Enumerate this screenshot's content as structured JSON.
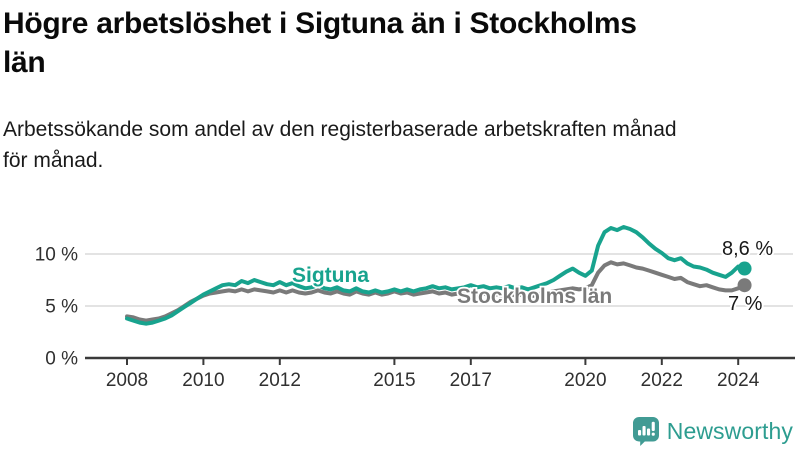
{
  "header": {
    "title": "Högre arbetslöshet i Sigtuna än i Stockholms län",
    "title_lines": [
      "Högre arbetslöshet i Sigtuna än i Stockholms",
      "län"
    ],
    "subtitle": "Arbetssökande som andel av den registerbaserade arbetskraften månad för månad.",
    "subtitle_lines": [
      "Arbetssökande som andel av den registerbaserade arbetskraften månad",
      "för månad."
    ]
  },
  "chart_data": {
    "type": "line",
    "title": "Högre arbetslöshet i Sigtuna än i Stockholms län",
    "xlabel": "",
    "ylabel": "%",
    "unit": "%",
    "grid": true,
    "xlim": [
      2007.9,
      2024.7
    ],
    "ylim": [
      0,
      13.5
    ],
    "x_start": 2008,
    "x_step_years": 0.1666667,
    "x_ticks": [
      "2008",
      "2010",
      "2012",
      "2015",
      "2017",
      "2020",
      "2022",
      "2024"
    ],
    "x_tick_years": [
      2008,
      2010,
      2012,
      2015,
      2017,
      2020,
      2022,
      2024
    ],
    "y_ticks": [
      {
        "value": 0,
        "label": "0 %"
      },
      {
        "value": 5,
        "label": "5 %"
      },
      {
        "value": 10,
        "label": "10 %"
      }
    ],
    "legend_position": "inline-labels",
    "series": [
      {
        "name": "Stockholms län",
        "color": "#7a7a7a",
        "end_label": "7 %",
        "end_value": 7.0,
        "values": [
          4.0,
          3.9,
          3.7,
          3.6,
          3.7,
          3.8,
          4.0,
          4.3,
          4.6,
          5.0,
          5.4,
          5.7,
          6.0,
          6.2,
          6.3,
          6.4,
          6.5,
          6.4,
          6.6,
          6.4,
          6.6,
          6.5,
          6.4,
          6.3,
          6.5,
          6.3,
          6.5,
          6.3,
          6.2,
          6.3,
          6.5,
          6.3,
          6.2,
          6.4,
          6.2,
          6.1,
          6.4,
          6.2,
          6.1,
          6.3,
          6.1,
          6.2,
          6.4,
          6.2,
          6.3,
          6.1,
          6.2,
          6.3,
          6.4,
          6.2,
          6.3,
          6.1,
          6.2,
          6.2,
          6.3,
          6.1,
          6.2,
          6.0,
          6.1,
          6.0,
          6.2,
          6.0,
          6.1,
          5.9,
          6.0,
          6.2,
          6.3,
          6.4,
          6.5,
          6.6,
          6.7,
          6.6,
          6.7,
          7.0,
          8.2,
          8.9,
          9.2,
          9.0,
          9.1,
          8.9,
          8.7,
          8.6,
          8.4,
          8.2,
          8.0,
          7.8,
          7.6,
          7.7,
          7.3,
          7.1,
          6.9,
          7.0,
          6.8,
          6.6,
          6.5,
          6.5,
          6.7,
          7.0
        ]
      },
      {
        "name": "Sigtuna",
        "color": "#18a38e",
        "end_label": "8,6 %",
        "end_value": 8.6,
        "values": [
          3.8,
          3.6,
          3.4,
          3.3,
          3.4,
          3.6,
          3.8,
          4.1,
          4.5,
          4.9,
          5.3,
          5.7,
          6.1,
          6.4,
          6.7,
          7.0,
          7.1,
          7.0,
          7.4,
          7.2,
          7.5,
          7.3,
          7.1,
          7.0,
          7.3,
          7.0,
          7.2,
          6.9,
          6.7,
          6.8,
          7.0,
          6.7,
          6.6,
          6.8,
          6.5,
          6.4,
          6.7,
          6.4,
          6.3,
          6.5,
          6.3,
          6.4,
          6.6,
          6.4,
          6.6,
          6.4,
          6.6,
          6.7,
          6.9,
          6.7,
          6.8,
          6.6,
          6.7,
          6.8,
          7.0,
          6.8,
          6.9,
          6.7,
          6.8,
          6.7,
          6.9,
          6.7,
          6.8,
          6.6,
          6.8,
          7.0,
          7.2,
          7.5,
          7.9,
          8.3,
          8.6,
          8.2,
          7.9,
          8.4,
          10.8,
          12.1,
          12.5,
          12.3,
          12.6,
          12.4,
          12.1,
          11.6,
          11.0,
          10.5,
          10.1,
          9.6,
          9.4,
          9.6,
          9.1,
          8.8,
          8.7,
          8.5,
          8.2,
          8.0,
          7.8,
          8.2,
          8.8,
          8.6
        ]
      }
    ],
    "colors": {
      "sigtuna": "#18a38e",
      "stockholms_lan": "#7a7a7a",
      "gridline": "#dadada",
      "axis": "#3a3a3a",
      "tick_label": "#303030",
      "value_label": "#1a1a1a"
    }
  },
  "branding": {
    "name": "Newsworthy",
    "logo_icon": "newsworthy-bar-chart-bubble-icon",
    "color": "#2d9d90"
  }
}
